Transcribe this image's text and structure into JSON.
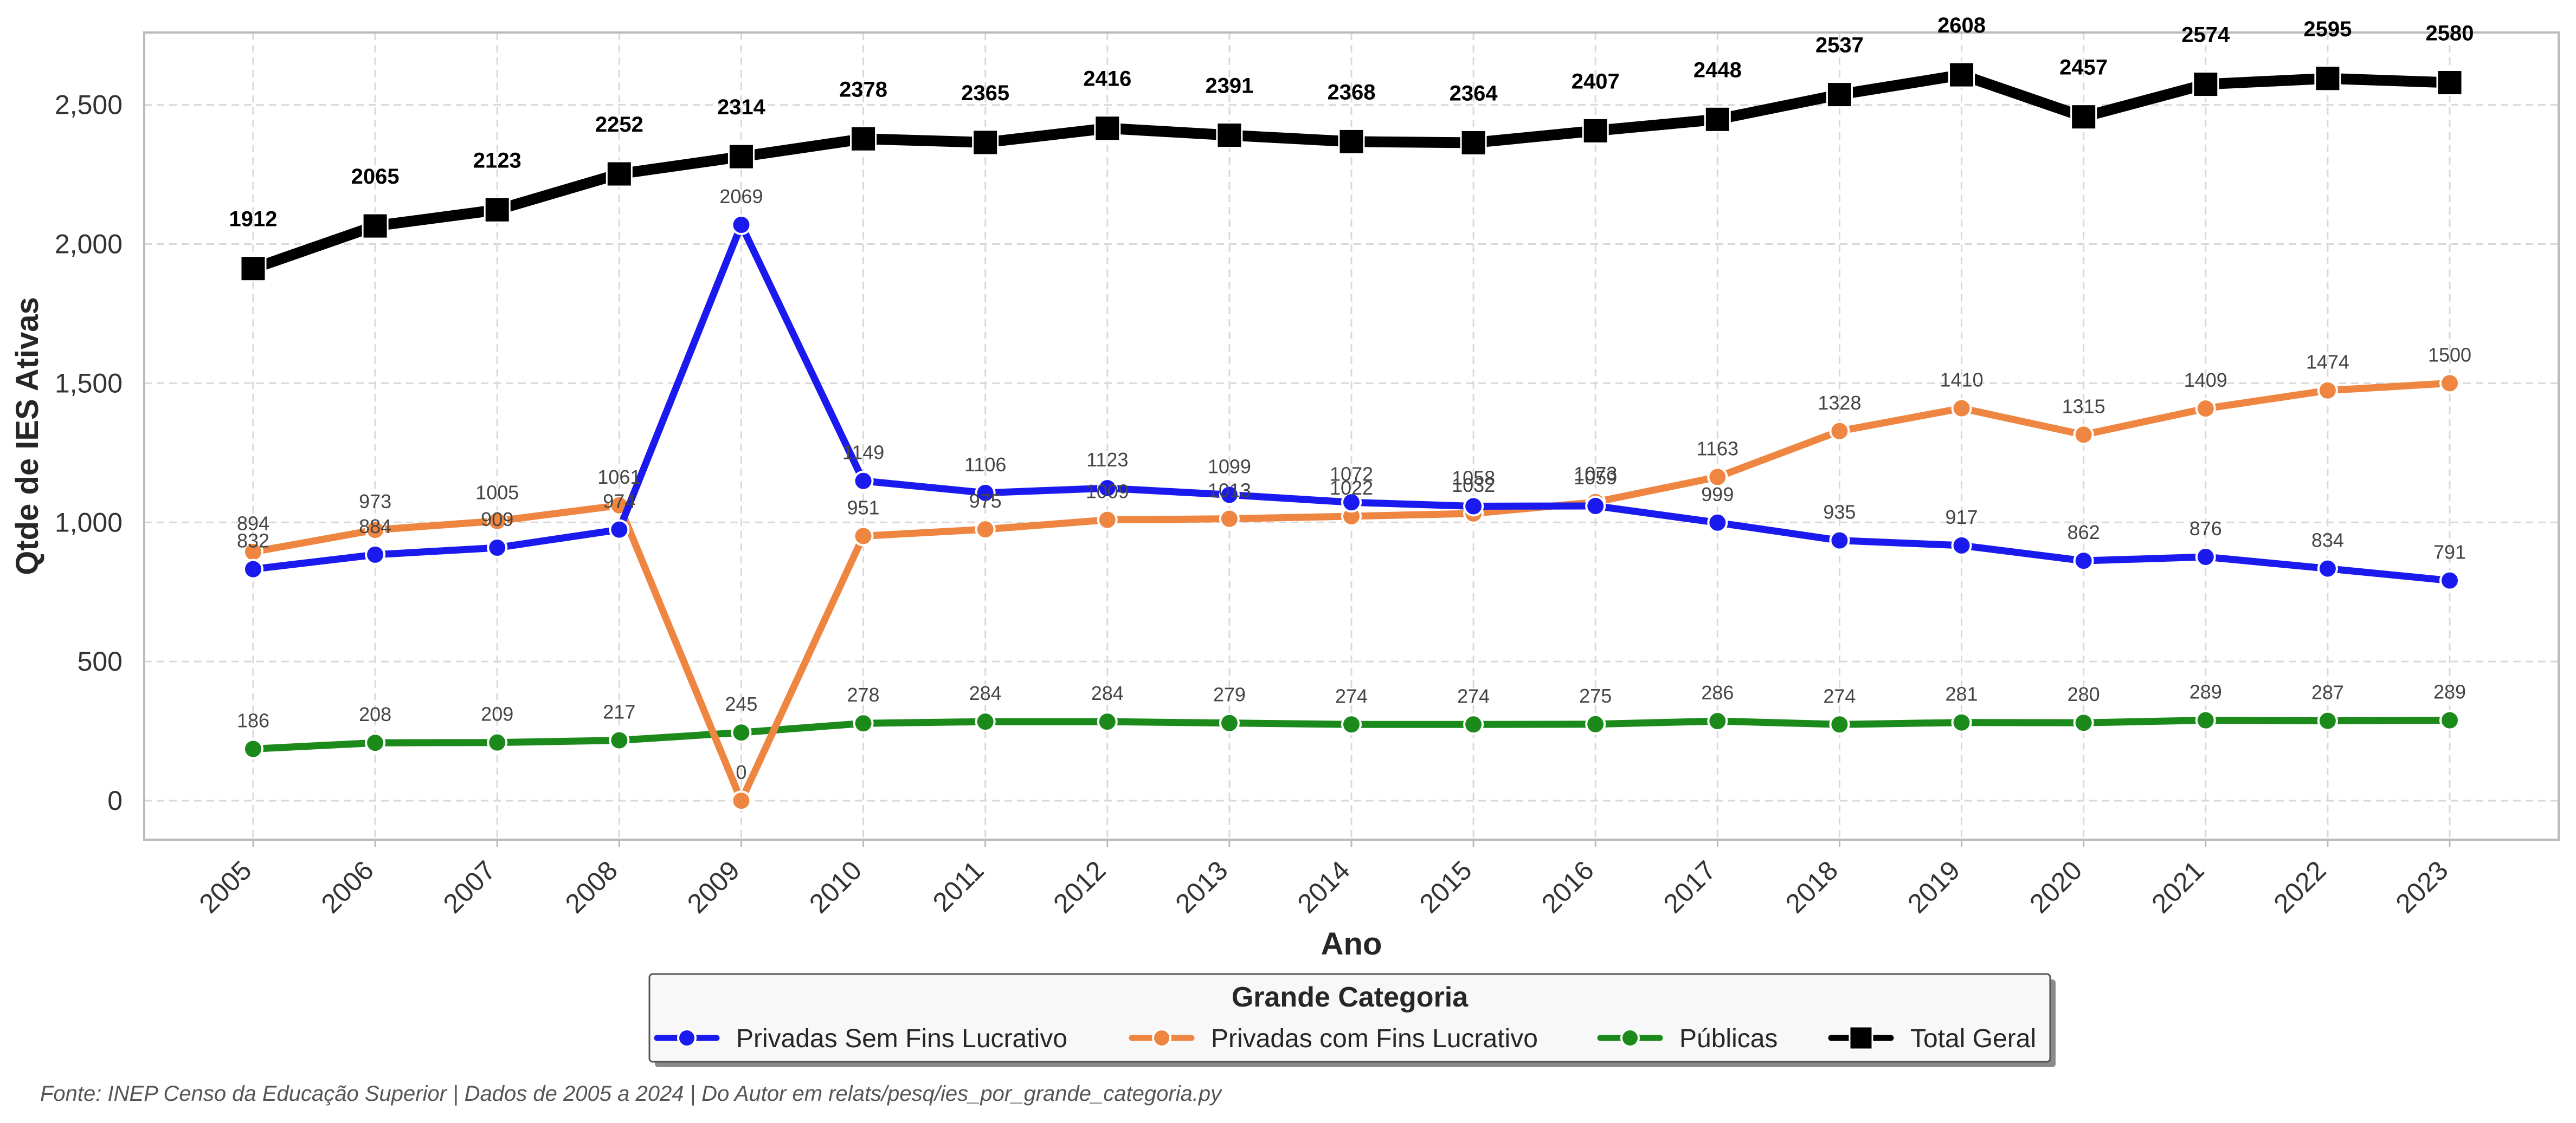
{
  "chart_data": {
    "type": "line",
    "title": "",
    "xlabel": "Ano",
    "ylabel": "Qtde de IES Ativas",
    "ylim": [
      -140,
      2760
    ],
    "yticks": [
      0,
      500,
      1000,
      1500,
      2000,
      2500
    ],
    "ytick_labels": [
      "0",
      "500",
      "1,000",
      "1,500",
      "2,000",
      "2,500"
    ],
    "grid": true,
    "categories": [
      "2005",
      "2006",
      "2007",
      "2008",
      "2009",
      "2010",
      "2011",
      "2012",
      "2013",
      "2014",
      "2015",
      "2016",
      "2017",
      "2018",
      "2019",
      "2020",
      "2021",
      "2022",
      "2023"
    ],
    "series": [
      {
        "name": "Privadas Sem Fins Lucrativo",
        "color": "#1a1aee",
        "marker": "circle",
        "values": [
          832,
          884,
          909,
          974,
          2069,
          1149,
          1106,
          1123,
          1099,
          1072,
          1058,
          1059,
          999,
          935,
          917,
          862,
          876,
          834,
          791
        ]
      },
      {
        "name": "Privadas com Fins Lucrativo",
        "color": "#ee8540",
        "marker": "circle",
        "values": [
          894,
          973,
          1005,
          1061,
          0,
          951,
          975,
          1009,
          1013,
          1022,
          1032,
          1073,
          1163,
          1328,
          1410,
          1315,
          1409,
          1474,
          1500
        ]
      },
      {
        "name": "Públicas",
        "color": "#1b8a1b",
        "marker": "circle",
        "values": [
          186,
          208,
          209,
          217,
          245,
          278,
          284,
          284,
          279,
          274,
          274,
          275,
          286,
          274,
          281,
          280,
          289,
          287,
          289
        ]
      },
      {
        "name": "Total Geral",
        "color": "#000000",
        "marker": "square",
        "values": [
          1912,
          2065,
          2123,
          2252,
          2314,
          2378,
          2365,
          2416,
          2391,
          2368,
          2364,
          2407,
          2448,
          2537,
          2608,
          2457,
          2574,
          2595,
          2580
        ]
      }
    ],
    "legend": {
      "title": "Grande Categoria",
      "position": "bottom-center"
    }
  },
  "footer": {
    "source": "Fonte: INEP Censo da Educação Superior | Dados de 2005 a 2024 | Do Autor em relats/pesq/ies_por_grande_categoria.py"
  }
}
